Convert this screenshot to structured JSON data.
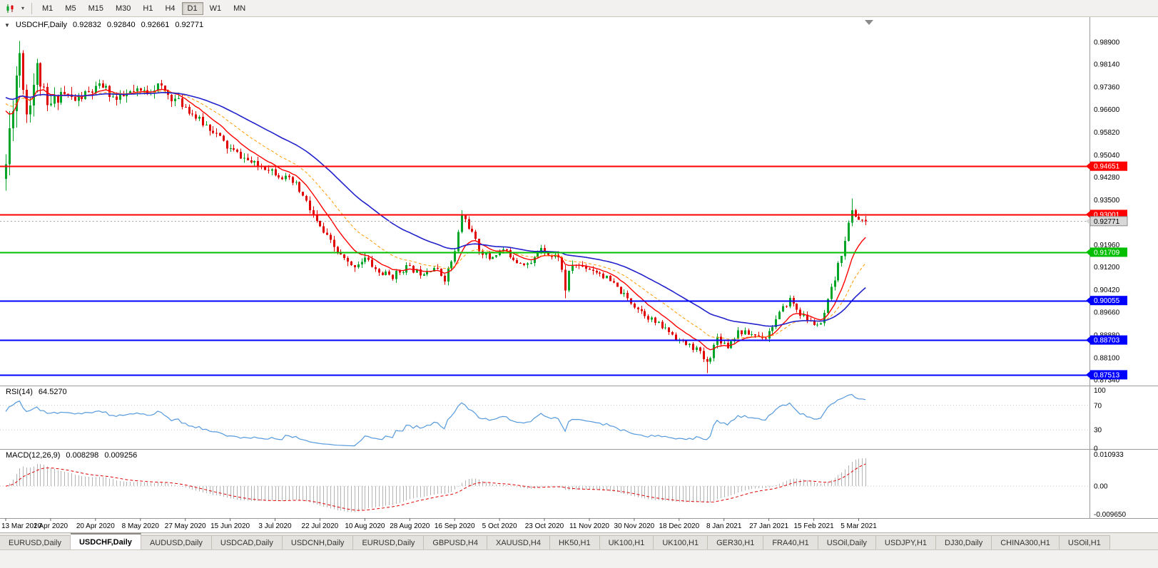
{
  "toolbar": {
    "timeframes": [
      "M1",
      "M5",
      "M15",
      "M30",
      "H1",
      "H4",
      "D1",
      "W1",
      "MN"
    ],
    "active_timeframe": "D1"
  },
  "icons": {
    "caret_down": "▾",
    "collapse_triangle": "▼"
  },
  "chart": {
    "title": "USDCHF,Daily",
    "ohlc": {
      "open": "0.92832",
      "high": "0.92840",
      "low": "0.92661",
      "close": "0.92771"
    },
    "price_axis_ticks": [
      "0.98900",
      "0.98140",
      "0.97360",
      "0.96600",
      "0.95820",
      "0.95040",
      "0.94280",
      "0.93500",
      "0.92740",
      "0.91960",
      "0.91200",
      "0.90420",
      "0.89660",
      "0.88880",
      "0.88100",
      "0.87340"
    ],
    "date_axis_ticks": [
      "13 Mar 2020",
      "1 Apr 2020",
      "20 Apr 2020",
      "8 May 2020",
      "27 May 2020",
      "15 Jun 2020",
      "3 Jul 2020",
      "22 Jul 2020",
      "10 Aug 2020",
      "28 Aug 2020",
      "16 Sep 2020",
      "5 Oct 2020",
      "23 Oct 2020",
      "11 Nov 2020",
      "30 Nov 2020",
      "18 Dec 2020",
      "8 Jan 2021",
      "27 Jan 2021",
      "15 Feb 2021",
      "5 Mar 2021"
    ],
    "horizontal_lines": [
      {
        "price": 0.94651,
        "label": "0.94651",
        "color": "#FF0000",
        "style": "solid",
        "width": 2
      },
      {
        "price": 0.93001,
        "label": "0.93001",
        "color": "#FF0000",
        "style": "solid",
        "width": 2
      },
      {
        "price": 0.92771,
        "label": "0.92771",
        "color": "#A8A8A8",
        "style": "dotted",
        "width": 1,
        "tag_bg": "#D8D8D8",
        "tag_fg": "#000000",
        "tag_border": "#8C8C8C",
        "is_current_price": true
      },
      {
        "price": 0.91709,
        "label": "0.91709",
        "color": "#00BE00",
        "style": "solid",
        "width": 2
      },
      {
        "price": 0.90055,
        "label": "0.90055",
        "color": "#0000FF",
        "style": "solid",
        "width": 2
      },
      {
        "price": 0.88703,
        "label": "0.88703",
        "color": "#0000FF",
        "style": "solid",
        "width": 2
      },
      {
        "price": 0.87513,
        "label": "0.87513",
        "color": "#0000FF",
        "style": "solid",
        "width": 2
      }
    ]
  },
  "indicators": {
    "rsi": {
      "label": "RSI(14)",
      "value": "64.5270",
      "levels": [
        "100",
        "70",
        "30",
        "0"
      ],
      "color": "#5599DD"
    },
    "macd": {
      "label": "MACD(12,26,9)",
      "value_main": "0.008298",
      "value_signal": "0.009256",
      "axis": [
        "0.010933",
        "0.00",
        "-0.009650"
      ]
    }
  },
  "chart_data": {
    "type": "candlestick",
    "symbol": "USDCHF",
    "timeframe": "Daily",
    "x_range": [
      "13 Mar 2020",
      "12 Mar 2021"
    ],
    "y_range": [
      0.872,
      0.992
    ],
    "candle_count": 250,
    "last_close": 0.92771,
    "seed": 11,
    "trajectory_anchors": [
      [
        0,
        0.947,
        0.012
      ],
      [
        2,
        0.97,
        0.013
      ],
      [
        4,
        0.986,
        0.011
      ],
      [
        6,
        0.965,
        0.009
      ],
      [
        9,
        0.98,
        0.008
      ],
      [
        12,
        0.966,
        0.007
      ],
      [
        16,
        0.972,
        0.005
      ],
      [
        20,
        0.969,
        0.0045
      ],
      [
        24,
        0.9715,
        0.0045
      ],
      [
        28,
        0.974,
        0.004
      ],
      [
        32,
        0.969,
        0.004
      ],
      [
        36,
        0.9715,
        0.004
      ],
      [
        40,
        0.972,
        0.004
      ],
      [
        44,
        0.974,
        0.004
      ],
      [
        48,
        0.97,
        0.0035
      ],
      [
        52,
        0.967,
        0.0035
      ],
      [
        56,
        0.962,
        0.0035
      ],
      [
        60,
        0.959,
        0.0035
      ],
      [
        64,
        0.953,
        0.0035
      ],
      [
        68,
        0.95,
        0.003
      ],
      [
        72,
        0.947,
        0.003
      ],
      [
        76,
        0.946,
        0.003
      ],
      [
        80,
        0.943,
        0.003
      ],
      [
        84,
        0.94,
        0.003
      ],
      [
        87,
        0.934,
        0.0035
      ],
      [
        90,
        0.927,
        0.0035
      ],
      [
        93,
        0.922,
        0.003
      ],
      [
        96,
        0.917,
        0.003
      ],
      [
        100,
        0.912,
        0.003
      ],
      [
        104,
        0.915,
        0.0028
      ],
      [
        108,
        0.91,
        0.0028
      ],
      [
        112,
        0.909,
        0.0028
      ],
      [
        116,
        0.912,
        0.0025
      ],
      [
        120,
        0.91,
        0.0025
      ],
      [
        124,
        0.912,
        0.0025
      ],
      [
        127,
        0.908,
        0.0025
      ],
      [
        130,
        0.917,
        0.003
      ],
      [
        132,
        0.93,
        0.003
      ],
      [
        134,
        0.926,
        0.003
      ],
      [
        137,
        0.918,
        0.0025
      ],
      [
        140,
        0.915,
        0.0025
      ],
      [
        144,
        0.918,
        0.0022
      ],
      [
        148,
        0.914,
        0.0022
      ],
      [
        152,
        0.913,
        0.0022
      ],
      [
        155,
        0.919,
        0.0022
      ],
      [
        158,
        0.9155,
        0.0022
      ],
      [
        160,
        0.916,
        0.0025
      ],
      [
        162,
        0.905,
        0.006
      ],
      [
        164,
        0.913,
        0.003
      ],
      [
        168,
        0.912,
        0.0025
      ],
      [
        172,
        0.91,
        0.0025
      ],
      [
        176,
        0.906,
        0.0025
      ],
      [
        180,
        0.901,
        0.0025
      ],
      [
        184,
        0.897,
        0.0025
      ],
      [
        188,
        0.893,
        0.0025
      ],
      [
        192,
        0.89,
        0.0025
      ],
      [
        196,
        0.886,
        0.0025
      ],
      [
        200,
        0.884,
        0.0025
      ],
      [
        203,
        0.879,
        0.003
      ],
      [
        206,
        0.888,
        0.0028
      ],
      [
        209,
        0.885,
        0.0025
      ],
      [
        212,
        0.89,
        0.0025
      ],
      [
        216,
        0.889,
        0.0022
      ],
      [
        220,
        0.888,
        0.0022
      ],
      [
        224,
        0.896,
        0.0025
      ],
      [
        227,
        0.901,
        0.0025
      ],
      [
        230,
        0.896,
        0.0022
      ],
      [
        233,
        0.893,
        0.0022
      ],
      [
        236,
        0.892,
        0.0022
      ],
      [
        238,
        0.9,
        0.0028
      ],
      [
        241,
        0.912,
        0.0035
      ],
      [
        243,
        0.922,
        0.0035
      ],
      [
        245,
        0.931,
        0.003
      ],
      [
        247,
        0.9285,
        0.0028
      ],
      [
        249,
        0.92771,
        0.0025
      ]
    ],
    "pins": [
      [
        4,
        0.989,
        "h"
      ],
      [
        203,
        0.8757,
        "l"
      ],
      [
        245,
        0.9355,
        "h"
      ]
    ],
    "moving_averages": [
      {
        "name": "fast",
        "period": 10,
        "color": "#FF0000",
        "style": "solid",
        "width": 1.4
      },
      {
        "name": "mid",
        "period": 21,
        "color": "#FF9900",
        "style": "dashed",
        "width": 1
      },
      {
        "name": "slow",
        "period": 45,
        "color": "#2222CC",
        "style": "solid",
        "width": 1.6
      }
    ],
    "levels": [
      0.94651,
      0.93001,
      0.91709,
      0.90055,
      0.88703,
      0.87513
    ],
    "rsi_current": 64.527,
    "macd_current": 0.008298,
    "macd_signal_current": 0.009256
  },
  "colors": {
    "candle_up": "#00A426",
    "candle_down": "#E00000",
    "macd_histogram": "#B4B4B4",
    "macd_signal": "#E00000",
    "level_dotted": "#C8C8C8",
    "separator": "#9A9A9A",
    "axis_text": "#000000"
  },
  "tabs": [
    {
      "label": "EURUSD,Daily",
      "active": false
    },
    {
      "label": "USDCHF,Daily",
      "active": true
    },
    {
      "label": "AUDUSD,Daily",
      "active": false
    },
    {
      "label": "USDCAD,Daily",
      "active": false
    },
    {
      "label": "USDCNH,Daily",
      "active": false
    },
    {
      "label": "EURUSD,Daily",
      "active": false
    },
    {
      "label": "GBPUSD,H4",
      "active": false
    },
    {
      "label": "XAUUSD,H4",
      "active": false
    },
    {
      "label": "HK50,H1",
      "active": false
    },
    {
      "label": "UK100,H1",
      "active": false
    },
    {
      "label": "UK100,H1",
      "active": false
    },
    {
      "label": "GER30,H1",
      "active": false
    },
    {
      "label": "FRA40,H1",
      "active": false
    },
    {
      "label": "USOil,Daily",
      "active": false
    },
    {
      "label": "USDJPY,H1",
      "active": false
    },
    {
      "label": "DJ30,Daily",
      "active": false
    },
    {
      "label": "CHINA300,H1",
      "active": false
    },
    {
      "label": "USOil,H1",
      "active": false
    }
  ]
}
